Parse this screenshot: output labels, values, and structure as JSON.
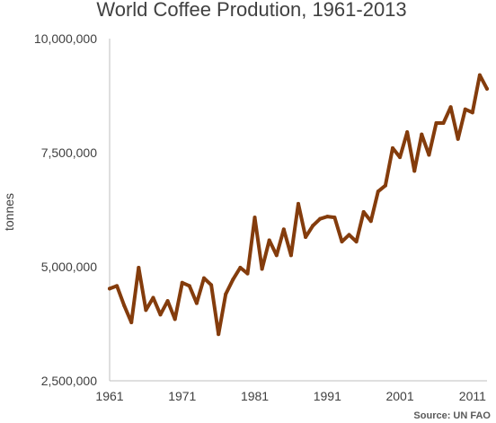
{
  "chart_data": {
    "type": "line",
    "title": "World Coffee Prodution, 1961-2013",
    "xlabel": "",
    "ylabel": "tonnes",
    "xlim": [
      1961,
      2013
    ],
    "ylim": [
      2500000,
      10000000
    ],
    "x_ticks": [
      "1961",
      "1971",
      "1981",
      "1991",
      "2001",
      "2011"
    ],
    "y_ticks": [
      "2,500,000",
      "5,000,000",
      "7,500,000",
      "10,000,000"
    ],
    "grid": false,
    "legend": "none",
    "source": "Source: UN FAO",
    "line_color": "#843c0c",
    "x": [
      1961,
      1962,
      1963,
      1964,
      1965,
      1966,
      1967,
      1968,
      1969,
      1970,
      1971,
      1972,
      1973,
      1974,
      1975,
      1976,
      1977,
      1978,
      1979,
      1980,
      1981,
      1982,
      1983,
      1984,
      1985,
      1986,
      1987,
      1988,
      1989,
      1990,
      1991,
      1992,
      1993,
      1994,
      1995,
      1996,
      1997,
      1998,
      1999,
      2000,
      2001,
      2002,
      2003,
      2004,
      2005,
      2006,
      2007,
      2008,
      2009,
      2010,
      2011,
      2012,
      2013
    ],
    "values": [
      4520000,
      4580000,
      4150000,
      3780000,
      4980000,
      4050000,
      4320000,
      3950000,
      4250000,
      3850000,
      4650000,
      4580000,
      4200000,
      4750000,
      4600000,
      3520000,
      4400000,
      4720000,
      4980000,
      4850000,
      6080000,
      4950000,
      5580000,
      5250000,
      5820000,
      5250000,
      6380000,
      5650000,
      5900000,
      6050000,
      6100000,
      6080000,
      5550000,
      5700000,
      5550000,
      6200000,
      6000000,
      6650000,
      6780000,
      7600000,
      7400000,
      7950000,
      7100000,
      7900000,
      7450000,
      8150000,
      8150000,
      8500000,
      7800000,
      8450000,
      8380000,
      9200000,
      8900000
    ]
  }
}
